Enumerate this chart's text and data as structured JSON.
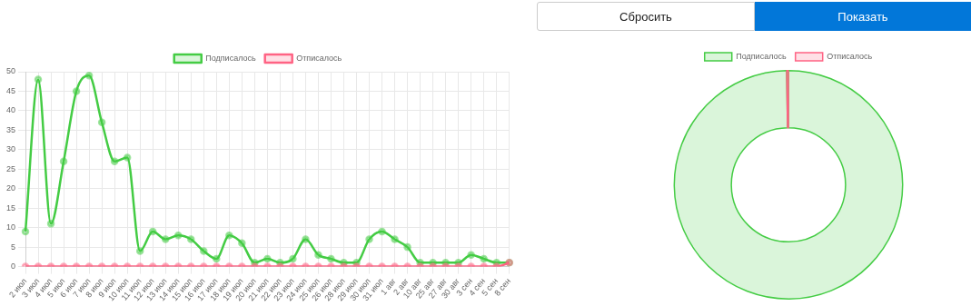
{
  "chart_data": [
    {
      "type": "other",
      "annotations": [
        "Сбросить",
        "Показать"
      ]
    },
    {
      "type": "line",
      "categories": [
        "2 июл",
        "3 июл",
        "4 июл",
        "5 июл",
        "6 июл",
        "7 июл",
        "8 июл",
        "9 июл",
        "10 июл",
        "11 июл",
        "12 июл",
        "13 июл",
        "14 июл",
        "15 июл",
        "16 июл",
        "17 июл",
        "18 июл",
        "19 июл",
        "20 июл",
        "21 июл",
        "22 июл",
        "23 июл",
        "24 июл",
        "25 июл",
        "26 июл",
        "28 июл",
        "29 июл",
        "30 июл",
        "31 июл",
        "1 авг",
        "2 авг",
        "10 авг",
        "25 авг",
        "27 авг",
        "30 авг",
        "3 сен",
        "4 сен",
        "5 сен",
        "8 сен"
      ],
      "series": [
        {
          "name": "Подписалось",
          "color": "#44cc44",
          "values": [
            9,
            48,
            11,
            27,
            45,
            49,
            37,
            27,
            28,
            4,
            9,
            7,
            8,
            7,
            4,
            2,
            8,
            6,
            1,
            2,
            1,
            2,
            7,
            3,
            2,
            1,
            1,
            7,
            9,
            7,
            5,
            1,
            1,
            1,
            1,
            3,
            2,
            1,
            1
          ]
        },
        {
          "name": "Отписалось",
          "color": "#ff6384",
          "values": [
            0,
            0,
            0,
            0,
            0,
            0,
            0,
            0,
            0,
            0,
            0,
            0,
            0,
            0,
            0,
            0,
            0,
            0,
            0,
            0,
            0,
            0,
            0,
            0,
            0,
            0,
            0,
            0,
            0,
            0,
            0,
            0,
            0,
            0,
            0,
            0,
            0,
            0,
            1
          ]
        }
      ],
      "ylim": [
        0,
        50
      ],
      "yticks": [
        0,
        5,
        10,
        15,
        20,
        25,
        30,
        35,
        40,
        45,
        50
      ],
      "grid": true,
      "legend": "top",
      "marker": "circle",
      "line_style": "solid"
    },
    {
      "type": "donut",
      "categories": [
        "Подписалось",
        "Отписалось"
      ],
      "values": [
        99.75,
        0.25
      ],
      "colors": [
        "#44cc44",
        "#ff6384"
      ],
      "legend": "top"
    }
  ]
}
